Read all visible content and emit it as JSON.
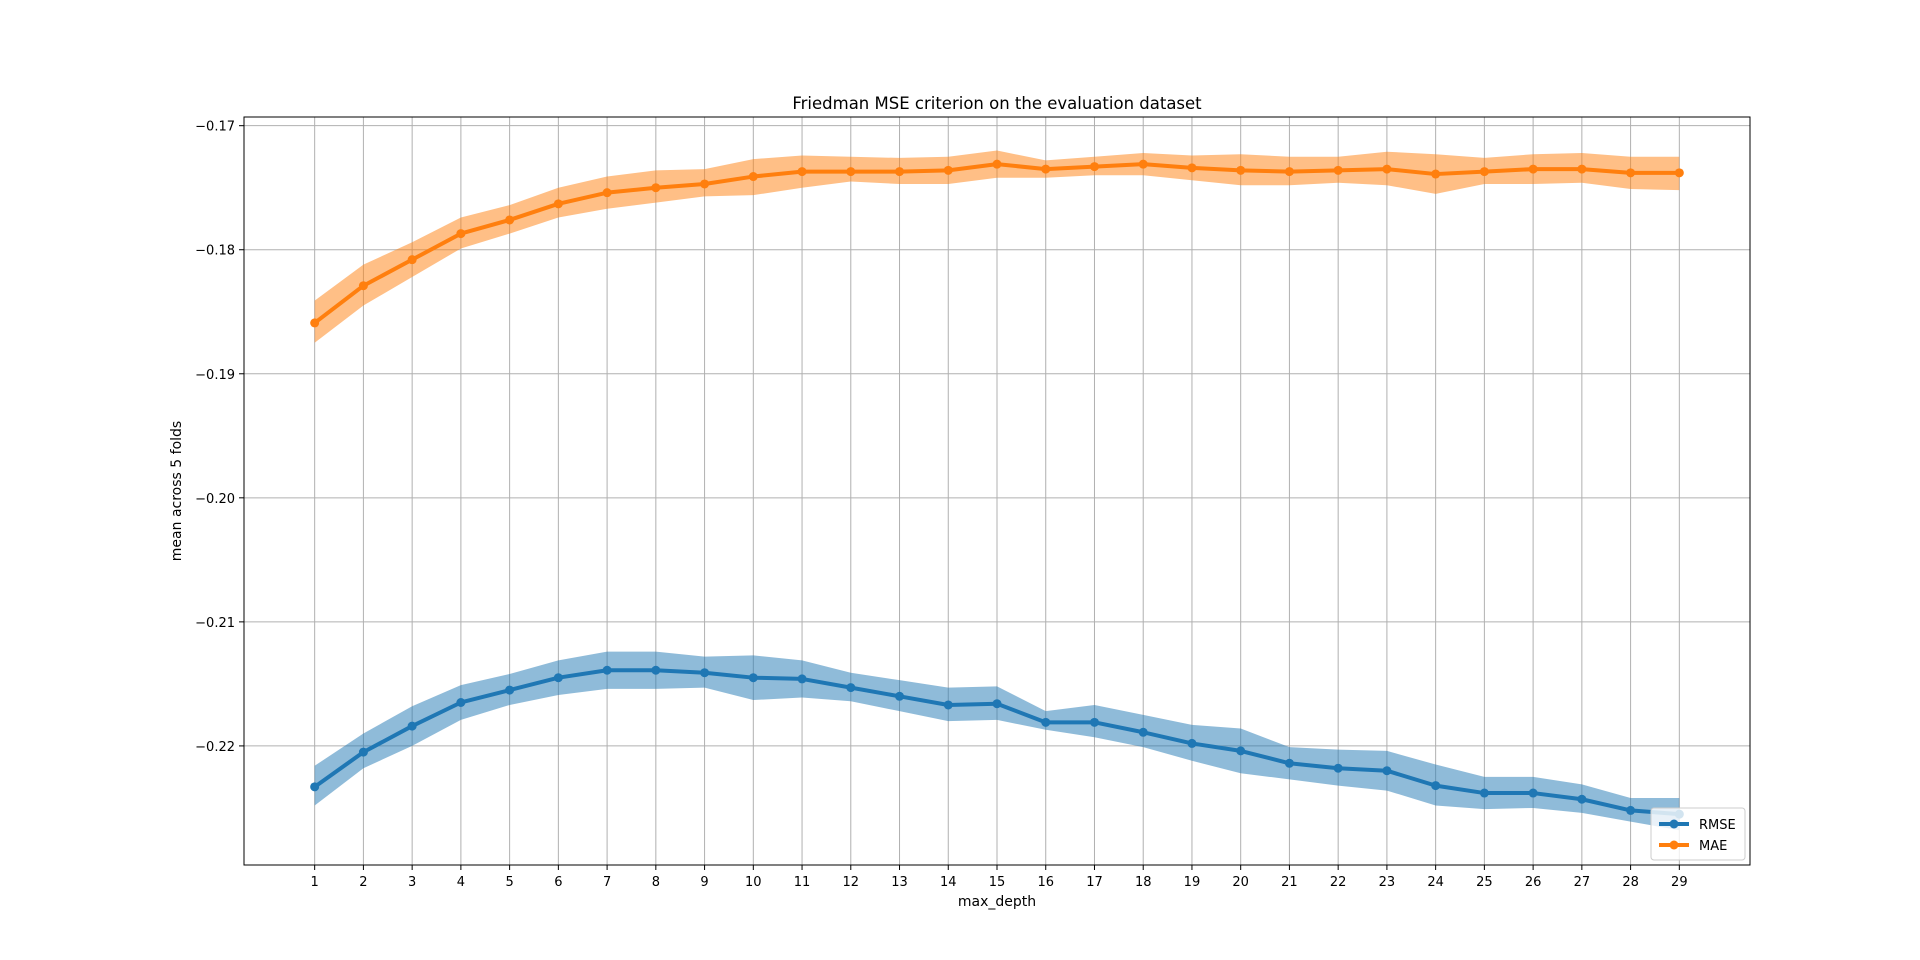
{
  "chart_data": {
    "type": "line",
    "title": "Friedman MSE criterion on the evaluation dataset",
    "xlabel": "max_depth",
    "ylabel": "mean across 5 folds",
    "x": [
      1,
      2,
      3,
      4,
      5,
      6,
      7,
      8,
      9,
      10,
      11,
      12,
      13,
      14,
      15,
      16,
      17,
      18,
      19,
      20,
      21,
      22,
      23,
      24,
      25,
      26,
      27,
      28,
      29
    ],
    "xlim": [
      -0.45,
      30.45
    ],
    "ylim": [
      -0.2296,
      -0.1693
    ],
    "yticks": [
      -0.17,
      -0.18,
      -0.19,
      -0.2,
      -0.21,
      -0.22
    ],
    "ytick_labels": [
      "−0.17",
      "−0.18",
      "−0.19",
      "−0.20",
      "−0.21",
      "−0.22"
    ],
    "grid": true,
    "legend_position": "lower-right",
    "series": [
      {
        "name": "RMSE",
        "color": "#1f77b4",
        "band_color": "#1f77b4",
        "values": [
          -0.2233,
          -0.2205,
          -0.2184,
          -0.2165,
          -0.2155,
          -0.2145,
          -0.2139,
          -0.2139,
          -0.2141,
          -0.2145,
          -0.2146,
          -0.2153,
          -0.216,
          -0.2167,
          -0.2166,
          -0.2181,
          -0.2181,
          -0.2189,
          -0.2198,
          -0.2204,
          -0.2214,
          -0.2218,
          -0.222,
          -0.2232,
          -0.2238,
          -0.2238,
          -0.2243,
          -0.2252,
          -0.2255
        ],
        "upper": [
          -0.2216,
          -0.219,
          -0.2168,
          -0.2151,
          -0.2142,
          -0.2131,
          -0.2124,
          -0.2124,
          -0.2128,
          -0.2127,
          -0.2131,
          -0.2141,
          -0.2147,
          -0.2153,
          -0.2152,
          -0.2172,
          -0.2167,
          -0.2175,
          -0.2183,
          -0.2186,
          -0.2201,
          -0.2203,
          -0.2204,
          -0.2215,
          -0.2225,
          -0.2225,
          -0.2231,
          -0.2242,
          -0.2242
        ],
        "lower": [
          -0.2248,
          -0.2218,
          -0.22,
          -0.2179,
          -0.2167,
          -0.2159,
          -0.2154,
          -0.2154,
          -0.2153,
          -0.2163,
          -0.2161,
          -0.2164,
          -0.2172,
          -0.218,
          -0.2179,
          -0.2187,
          -0.2193,
          -0.2201,
          -0.2212,
          -0.2222,
          -0.2227,
          -0.2232,
          -0.2236,
          -0.2248,
          -0.2251,
          -0.225,
          -0.2254,
          -0.2261,
          -0.2268
        ]
      },
      {
        "name": "MAE",
        "color": "#ff7f0e",
        "band_color": "#ff7f0e",
        "values": [
          -0.1859,
          -0.1829,
          -0.1808,
          -0.1787,
          -0.1776,
          -0.1763,
          -0.1754,
          -0.175,
          -0.1747,
          -0.1741,
          -0.1737,
          -0.1737,
          -0.1737,
          -0.1736,
          -0.1731,
          -0.1735,
          -0.1733,
          -0.1731,
          -0.1734,
          -0.1736,
          -0.1737,
          -0.1736,
          -0.1735,
          -0.1739,
          -0.1737,
          -0.1735,
          -0.1735,
          -0.1738,
          -0.1738
        ],
        "upper": [
          -0.1841,
          -0.1812,
          -0.1794,
          -0.1774,
          -0.1764,
          -0.175,
          -0.1741,
          -0.1736,
          -0.1735,
          -0.1727,
          -0.1724,
          -0.1725,
          -0.1726,
          -0.1725,
          -0.172,
          -0.1728,
          -0.1725,
          -0.1722,
          -0.1724,
          -0.1723,
          -0.1725,
          -0.1725,
          -0.1721,
          -0.1723,
          -0.1726,
          -0.1723,
          -0.1722,
          -0.1725,
          -0.1725
        ],
        "lower": [
          -0.1875,
          -0.1845,
          -0.1822,
          -0.1799,
          -0.1787,
          -0.1774,
          -0.1767,
          -0.1762,
          -0.1757,
          -0.1756,
          -0.175,
          -0.1745,
          -0.1747,
          -0.1747,
          -0.1742,
          -0.1742,
          -0.174,
          -0.174,
          -0.1744,
          -0.1748,
          -0.1748,
          -0.1746,
          -0.1748,
          -0.1755,
          -0.1747,
          -0.1747,
          -0.1746,
          -0.1751,
          -0.1752
        ]
      }
    ]
  }
}
